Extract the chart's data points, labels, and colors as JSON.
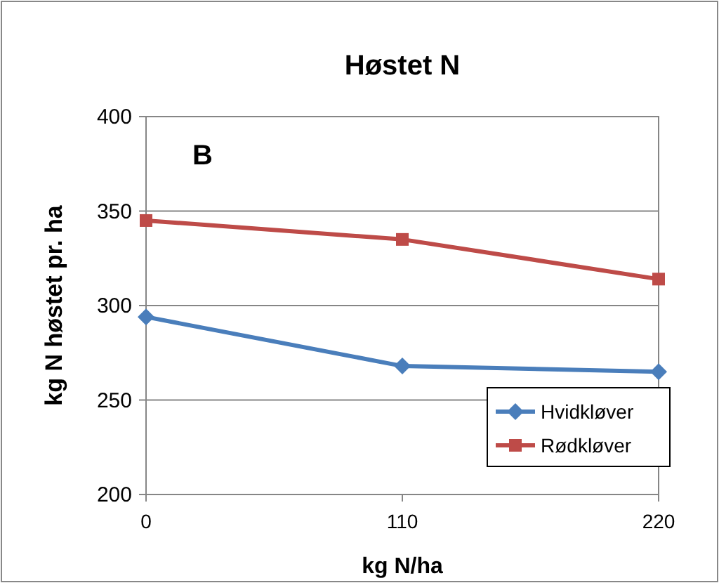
{
  "chart_data": {
    "type": "line",
    "title": "Høstet N",
    "xlabel": "kg N/ha",
    "ylabel": "kg N høstet pr. ha",
    "x": [
      0,
      110,
      220
    ],
    "xlim": [
      0,
      220
    ],
    "xticks": [
      0,
      110,
      220
    ],
    "ylim": [
      200,
      400
    ],
    "yticks": [
      200,
      250,
      300,
      350,
      400
    ],
    "grid": "y",
    "legend": "bottom right",
    "annotations": [
      "B"
    ],
    "series": [
      {
        "name": "Hvidkløver",
        "color": "#4a7ebb",
        "values": [
          294,
          268,
          265
        ],
        "marker": "diamond"
      },
      {
        "name": "Rødkløver",
        "color": "#be4b48",
        "values": [
          345,
          335,
          314
        ],
        "marker": "square"
      }
    ]
  }
}
